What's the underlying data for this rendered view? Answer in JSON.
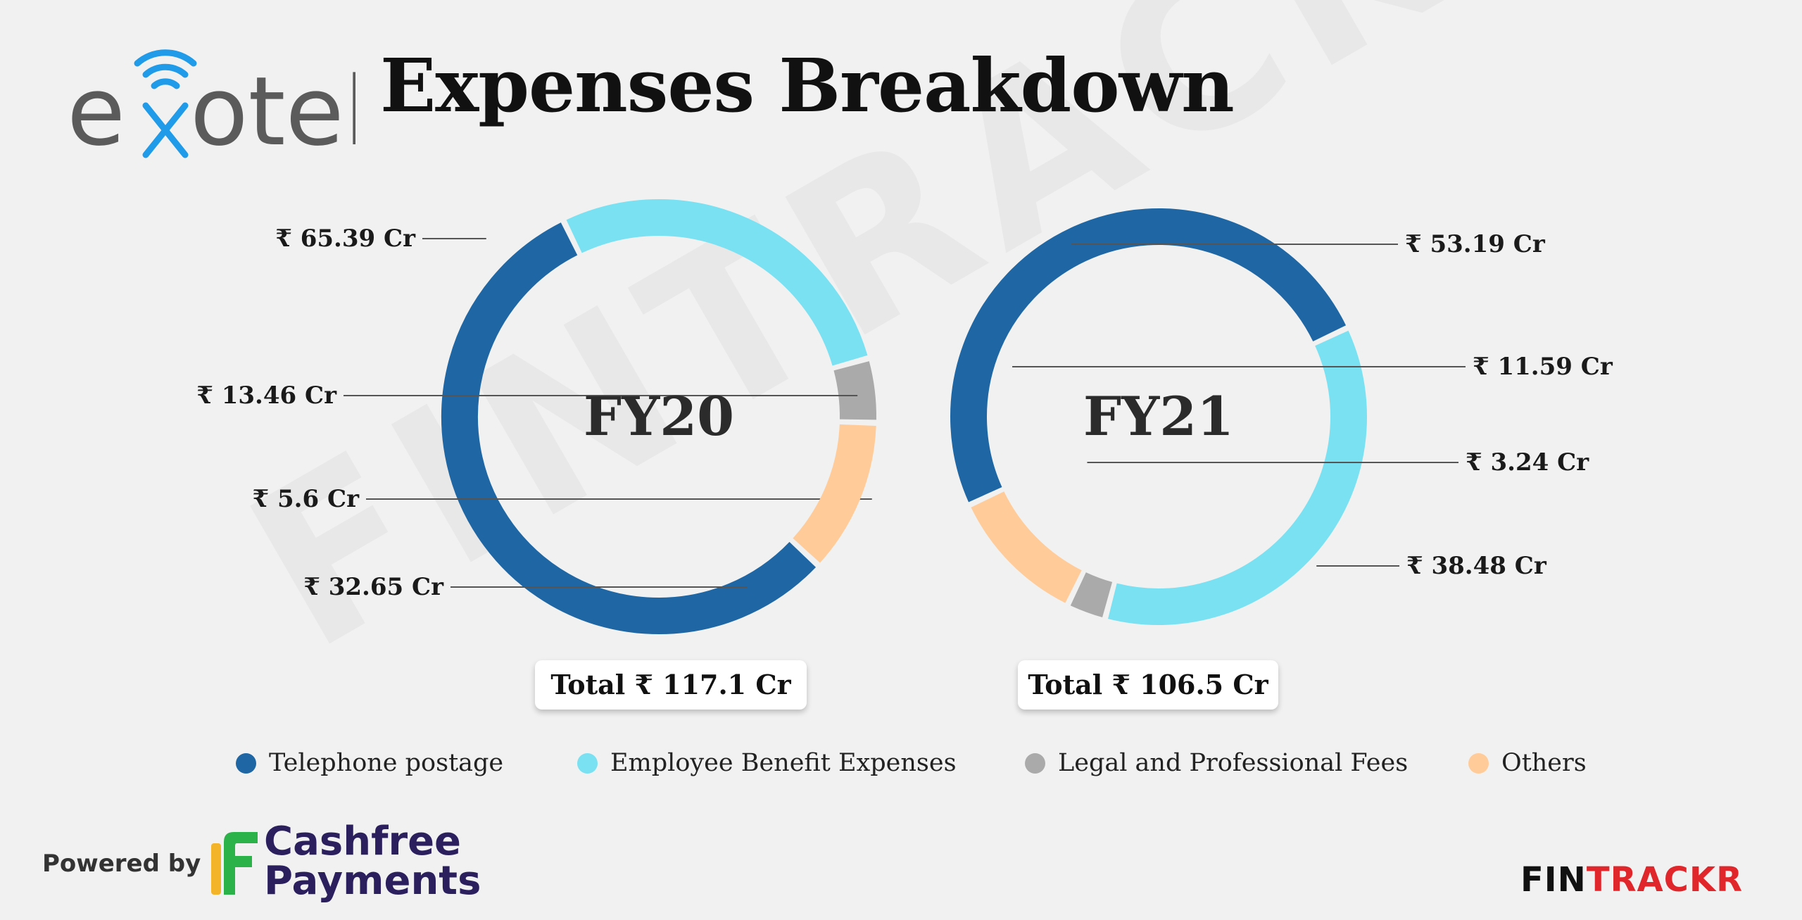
{
  "brand": {
    "name": "exotel",
    "accent": "#1f9be9",
    "text_color": "#5b5b5b"
  },
  "title": "Expenses Breakdown",
  "watermark": "FINTRACKR",
  "chart_data": {
    "type": "donut",
    "title": "Expenses Breakdown",
    "categories": [
      "Telephone postage",
      "Employee Benefit Expenses",
      "Legal and Professional Fees",
      "Others"
    ],
    "colors": [
      "#1f67a4",
      "#79e1f2",
      "#aaaaaa",
      "#ffcc99"
    ],
    "series": [
      {
        "name": "FY20",
        "values": [
          65.39,
          32.65,
          5.6,
          13.46
        ],
        "labels": [
          "₹ 65.39 Cr",
          "₹ 32.65 Cr",
          "₹ 5.6 Cr",
          "₹ 13.46 Cr"
        ],
        "total": "Total ₹ 117.1 Cr"
      },
      {
        "name": "FY21",
        "values": [
          53.19,
          38.48,
          3.24,
          11.59
        ],
        "labels": [
          "₹ 53.19 Cr",
          "₹ 38.48 Cr",
          "₹ 3.24 Cr",
          "₹ 11.59 Cr"
        ],
        "total": "Total ₹ 106.5 Cr"
      }
    ],
    "legend_position": "bottom"
  },
  "footer": {
    "powered_by": "Powered by",
    "sponsor_line1": "Cashfree",
    "sponsor_line2": "Payments",
    "fintrackr_fin": "FIN",
    "fintrackr_trackr": "TRACKR"
  }
}
